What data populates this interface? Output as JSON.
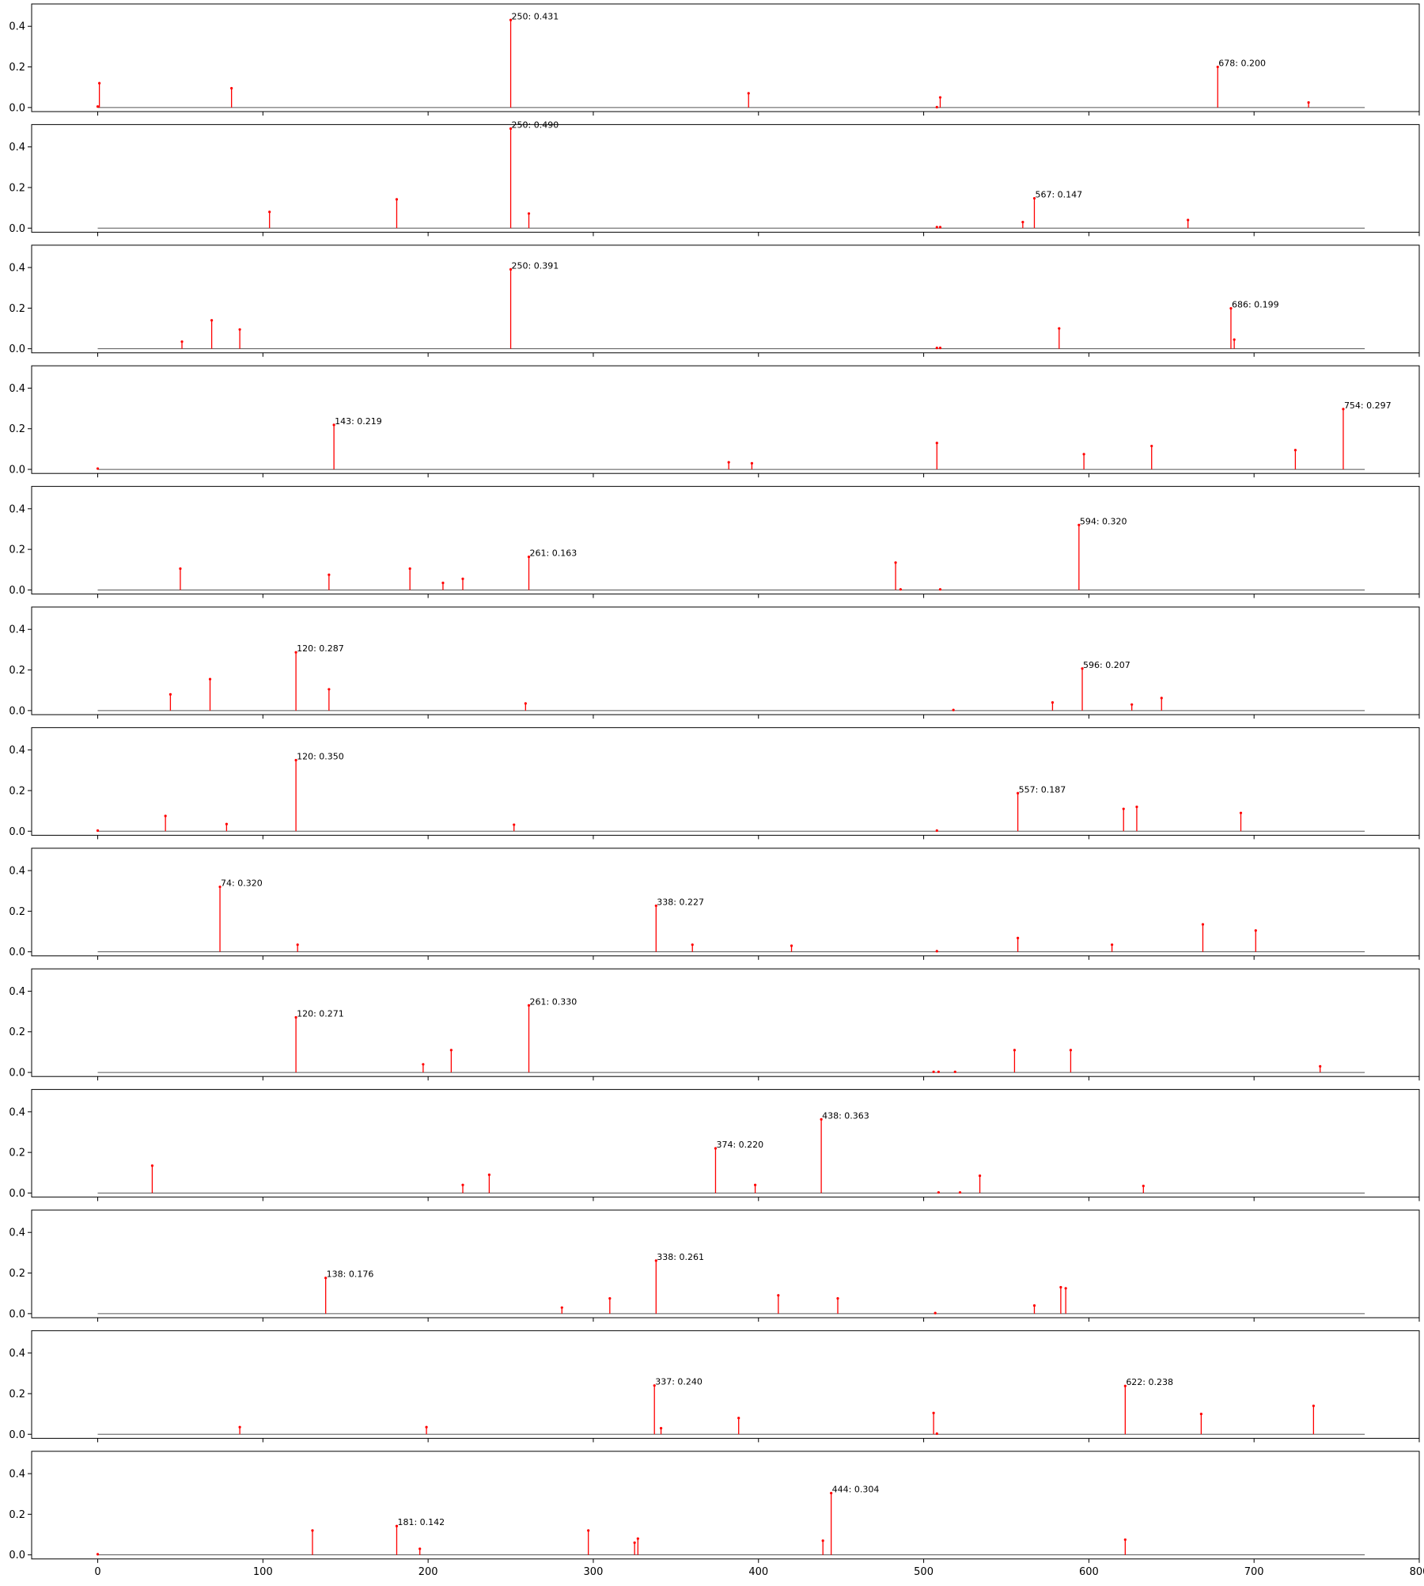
{
  "chart_data": {
    "type": "stem",
    "layout": "13 vertically stacked subplots with shared x-axis",
    "xlim": [
      -40,
      800
    ],
    "ylim": [
      -0.02,
      0.51
    ],
    "x_ticks": [
      0,
      100,
      200,
      300,
      400,
      500,
      600,
      700,
      800
    ],
    "y_ticks": [
      0.0,
      0.2,
      0.4
    ],
    "baseline_range": [
      0,
      767
    ],
    "colors": {
      "stem": "#ff0000",
      "baseline": "#555555",
      "axes": "#000000"
    },
    "panels": [
      {
        "points": [
          [
            0,
            0.005
          ],
          [
            1,
            0.12
          ],
          [
            81,
            0.095
          ],
          [
            250,
            0.431
          ],
          [
            394,
            0.07
          ],
          [
            508,
            0.002
          ],
          [
            510,
            0.05
          ],
          [
            678,
            0.2
          ],
          [
            733,
            0.025
          ]
        ],
        "annotations": [
          {
            "x": 250,
            "y": 0.431,
            "label": "250: 0.431"
          },
          {
            "x": 678,
            "y": 0.2,
            "label": "678: 0.200"
          }
        ]
      },
      {
        "points": [
          [
            104,
            0.08
          ],
          [
            181,
            0.142
          ],
          [
            250,
            0.49
          ],
          [
            261,
            0.072
          ],
          [
            508,
            0.005
          ],
          [
            510,
            0.005
          ],
          [
            560,
            0.03
          ],
          [
            567,
            0.147
          ],
          [
            660,
            0.04
          ]
        ],
        "annotations": [
          {
            "x": 250,
            "y": 0.49,
            "label": "250: 0.490"
          },
          {
            "x": 567,
            "y": 0.147,
            "label": "567: 0.147"
          }
        ]
      },
      {
        "points": [
          [
            51,
            0.035
          ],
          [
            69,
            0.14
          ],
          [
            86,
            0.095
          ],
          [
            250,
            0.391
          ],
          [
            508,
            0.004
          ],
          [
            510,
            0.004
          ],
          [
            582,
            0.1
          ],
          [
            686,
            0.199
          ],
          [
            688,
            0.045
          ]
        ],
        "annotations": [
          {
            "x": 250,
            "y": 0.391,
            "label": "250: 0.391"
          },
          {
            "x": 686,
            "y": 0.199,
            "label": "686: 0.199"
          }
        ]
      },
      {
        "points": [
          [
            0,
            0.004
          ],
          [
            143,
            0.219
          ],
          [
            382,
            0.035
          ],
          [
            396,
            0.03
          ],
          [
            508,
            0.13
          ],
          [
            597,
            0.075
          ],
          [
            638,
            0.115
          ],
          [
            725,
            0.095
          ],
          [
            754,
            0.297
          ]
        ],
        "annotations": [
          {
            "x": 143,
            "y": 0.219,
            "label": "143: 0.219"
          },
          {
            "x": 754,
            "y": 0.297,
            "label": "754: 0.297"
          }
        ]
      },
      {
        "points": [
          [
            50,
            0.105
          ],
          [
            140,
            0.075
          ],
          [
            189,
            0.105
          ],
          [
            209,
            0.035
          ],
          [
            221,
            0.055
          ],
          [
            261,
            0.163
          ],
          [
            483,
            0.135
          ],
          [
            486,
            0.003
          ],
          [
            510,
            0.003
          ],
          [
            594,
            0.32
          ]
        ],
        "annotations": [
          {
            "x": 261,
            "y": 0.163,
            "label": "261: 0.163"
          },
          {
            "x": 594,
            "y": 0.32,
            "label": "594: 0.320"
          }
        ]
      },
      {
        "points": [
          [
            44,
            0.08
          ],
          [
            68,
            0.155
          ],
          [
            120,
            0.287
          ],
          [
            140,
            0.105
          ],
          [
            259,
            0.035
          ],
          [
            518,
            0.003
          ],
          [
            578,
            0.04
          ],
          [
            596,
            0.207
          ],
          [
            626,
            0.03
          ],
          [
            644,
            0.062
          ]
        ],
        "annotations": [
          {
            "x": 120,
            "y": 0.287,
            "label": "120: 0.287"
          },
          {
            "x": 596,
            "y": 0.207,
            "label": "596: 0.207"
          }
        ]
      },
      {
        "points": [
          [
            0,
            0.003
          ],
          [
            41,
            0.075
          ],
          [
            78,
            0.035
          ],
          [
            120,
            0.35
          ],
          [
            252,
            0.032
          ],
          [
            508,
            0.003
          ],
          [
            557,
            0.187
          ],
          [
            621,
            0.11
          ],
          [
            629,
            0.12
          ],
          [
            692,
            0.09
          ]
        ],
        "annotations": [
          {
            "x": 120,
            "y": 0.35,
            "label": "120: 0.350"
          },
          {
            "x": 557,
            "y": 0.187,
            "label": "557: 0.187"
          }
        ]
      },
      {
        "points": [
          [
            74,
            0.32
          ],
          [
            121,
            0.035
          ],
          [
            338,
            0.227
          ],
          [
            360,
            0.035
          ],
          [
            420,
            0.03
          ],
          [
            508,
            0.003
          ],
          [
            557,
            0.068
          ],
          [
            614,
            0.035
          ],
          [
            669,
            0.135
          ],
          [
            701,
            0.105
          ]
        ],
        "annotations": [
          {
            "x": 74,
            "y": 0.32,
            "label": "74: 0.320"
          },
          {
            "x": 338,
            "y": 0.227,
            "label": "338: 0.227"
          }
        ]
      },
      {
        "points": [
          [
            120,
            0.271
          ],
          [
            197,
            0.04
          ],
          [
            214,
            0.11
          ],
          [
            261,
            0.33
          ],
          [
            506,
            0.003
          ],
          [
            509,
            0.003
          ],
          [
            519,
            0.003
          ],
          [
            555,
            0.11
          ],
          [
            589,
            0.11
          ],
          [
            740,
            0.03
          ]
        ],
        "annotations": [
          {
            "x": 120,
            "y": 0.271,
            "label": "120: 0.271"
          },
          {
            "x": 261,
            "y": 0.33,
            "label": "261: 0.330"
          }
        ]
      },
      {
        "points": [
          [
            33,
            0.135
          ],
          [
            221,
            0.04
          ],
          [
            237,
            0.09
          ],
          [
            374,
            0.22
          ],
          [
            398,
            0.04
          ],
          [
            438,
            0.363
          ],
          [
            509,
            0.003
          ],
          [
            522,
            0.003
          ],
          [
            534,
            0.085
          ],
          [
            633,
            0.035
          ]
        ],
        "annotations": [
          {
            "x": 374,
            "y": 0.22,
            "label": "374: 0.220"
          },
          {
            "x": 438,
            "y": 0.363,
            "label": "438: 0.363"
          }
        ]
      },
      {
        "points": [
          [
            138,
            0.176
          ],
          [
            281,
            0.03
          ],
          [
            310,
            0.075
          ],
          [
            338,
            0.261
          ],
          [
            412,
            0.09
          ],
          [
            448,
            0.075
          ],
          [
            507,
            0.003
          ],
          [
            567,
            0.04
          ],
          [
            583,
            0.13
          ],
          [
            586,
            0.125
          ]
        ],
        "annotations": [
          {
            "x": 138,
            "y": 0.176,
            "label": "138: 0.176"
          },
          {
            "x": 338,
            "y": 0.261,
            "label": "338: 0.261"
          }
        ]
      },
      {
        "points": [
          [
            86,
            0.035
          ],
          [
            199,
            0.035
          ],
          [
            337,
            0.24
          ],
          [
            341,
            0.03
          ],
          [
            388,
            0.08
          ],
          [
            506,
            0.105
          ],
          [
            508,
            0.003
          ],
          [
            622,
            0.238
          ],
          [
            668,
            0.1
          ],
          [
            736,
            0.14
          ]
        ],
        "annotations": [
          {
            "x": 337,
            "y": 0.24,
            "label": "337: 0.240"
          },
          {
            "x": 622,
            "y": 0.238,
            "label": "622: 0.238"
          }
        ]
      },
      {
        "points": [
          [
            0,
            0.003
          ],
          [
            130,
            0.12
          ],
          [
            181,
            0.142
          ],
          [
            195,
            0.03
          ],
          [
            297,
            0.12
          ],
          [
            325,
            0.06
          ],
          [
            327,
            0.08
          ],
          [
            439,
            0.07
          ],
          [
            444,
            0.304
          ],
          [
            622,
            0.075
          ]
        ],
        "annotations": [
          {
            "x": 181,
            "y": 0.142,
            "label": "181: 0.142"
          },
          {
            "x": 444,
            "y": 0.304,
            "label": "444: 0.304"
          }
        ]
      }
    ]
  }
}
